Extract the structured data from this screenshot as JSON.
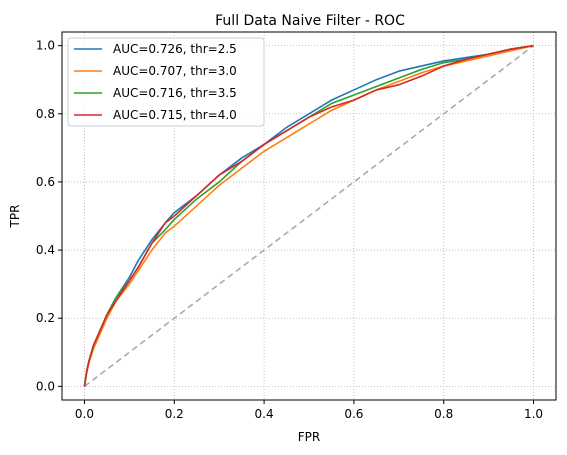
{
  "chart_data": {
    "type": "line",
    "title": "Full Data Naive Filter - ROC",
    "xlabel": "FPR",
    "ylabel": "TPR",
    "xlim": [
      -0.05,
      1.05
    ],
    "ylim": [
      -0.04,
      1.04
    ],
    "xticks": [
      "0.0",
      "0.2",
      "0.4",
      "0.6",
      "0.8",
      "1.0"
    ],
    "yticks": [
      "0.0",
      "0.2",
      "0.4",
      "0.6",
      "0.8",
      "1.0"
    ],
    "grid": true,
    "grid_style": "dotted",
    "legend_position": "top-left",
    "diagonal": {
      "x": [
        0,
        1
      ],
      "y": [
        0,
        1
      ],
      "color": "#aaaaaa",
      "style": "dashed"
    },
    "series": [
      {
        "name": "AUC=0.726, thr=2.5",
        "color": "#1f77b4",
        "x": [
          0,
          0.005,
          0.01,
          0.02,
          0.03,
          0.05,
          0.07,
          0.1,
          0.12,
          0.15,
          0.18,
          0.2,
          0.25,
          0.3,
          0.35,
          0.4,
          0.45,
          0.5,
          0.55,
          0.6,
          0.65,
          0.7,
          0.75,
          0.8,
          0.85,
          0.9,
          0.95,
          1.0
        ],
        "y": [
          0,
          0.04,
          0.07,
          0.12,
          0.15,
          0.21,
          0.26,
          0.32,
          0.37,
          0.43,
          0.48,
          0.51,
          0.56,
          0.62,
          0.67,
          0.71,
          0.76,
          0.8,
          0.84,
          0.87,
          0.9,
          0.925,
          0.94,
          0.955,
          0.965,
          0.975,
          0.99,
          1.0
        ]
      },
      {
        "name": "AUC=0.707, thr=3.0",
        "color": "#ff7f0e",
        "x": [
          0,
          0.005,
          0.01,
          0.02,
          0.03,
          0.05,
          0.07,
          0.1,
          0.12,
          0.15,
          0.18,
          0.2,
          0.25,
          0.3,
          0.35,
          0.4,
          0.45,
          0.5,
          0.55,
          0.6,
          0.65,
          0.7,
          0.75,
          0.8,
          0.85,
          0.9,
          0.95,
          1.0
        ],
        "y": [
          0,
          0.04,
          0.07,
          0.11,
          0.14,
          0.2,
          0.25,
          0.3,
          0.34,
          0.4,
          0.45,
          0.47,
          0.53,
          0.59,
          0.64,
          0.69,
          0.73,
          0.77,
          0.81,
          0.84,
          0.87,
          0.895,
          0.92,
          0.94,
          0.955,
          0.97,
          0.985,
          1.0
        ]
      },
      {
        "name": "AUC=0.716, thr=3.5",
        "color": "#2ca02c",
        "x": [
          0,
          0.005,
          0.01,
          0.02,
          0.03,
          0.05,
          0.07,
          0.1,
          0.12,
          0.15,
          0.18,
          0.2,
          0.25,
          0.3,
          0.35,
          0.4,
          0.45,
          0.5,
          0.55,
          0.6,
          0.65,
          0.7,
          0.75,
          0.8,
          0.85,
          0.9,
          0.95,
          1.0
        ],
        "y": [
          0,
          0.045,
          0.075,
          0.12,
          0.15,
          0.21,
          0.26,
          0.31,
          0.35,
          0.42,
          0.46,
          0.49,
          0.55,
          0.6,
          0.66,
          0.71,
          0.75,
          0.79,
          0.83,
          0.855,
          0.88,
          0.905,
          0.93,
          0.95,
          0.96,
          0.975,
          0.99,
          1.0
        ]
      },
      {
        "name": "AUC=0.715, thr=4.0",
        "color": "#d62728",
        "x": [
          0,
          0.005,
          0.01,
          0.02,
          0.03,
          0.05,
          0.07,
          0.1,
          0.12,
          0.15,
          0.18,
          0.2,
          0.25,
          0.3,
          0.35,
          0.4,
          0.45,
          0.5,
          0.55,
          0.6,
          0.65,
          0.7,
          0.75,
          0.8,
          0.85,
          0.9,
          0.95,
          1.0
        ],
        "y": [
          0,
          0.045,
          0.075,
          0.12,
          0.15,
          0.21,
          0.25,
          0.31,
          0.35,
          0.42,
          0.48,
          0.5,
          0.56,
          0.62,
          0.66,
          0.71,
          0.75,
          0.79,
          0.82,
          0.84,
          0.87,
          0.885,
          0.91,
          0.94,
          0.96,
          0.975,
          0.99,
          1.0
        ]
      }
    ]
  }
}
